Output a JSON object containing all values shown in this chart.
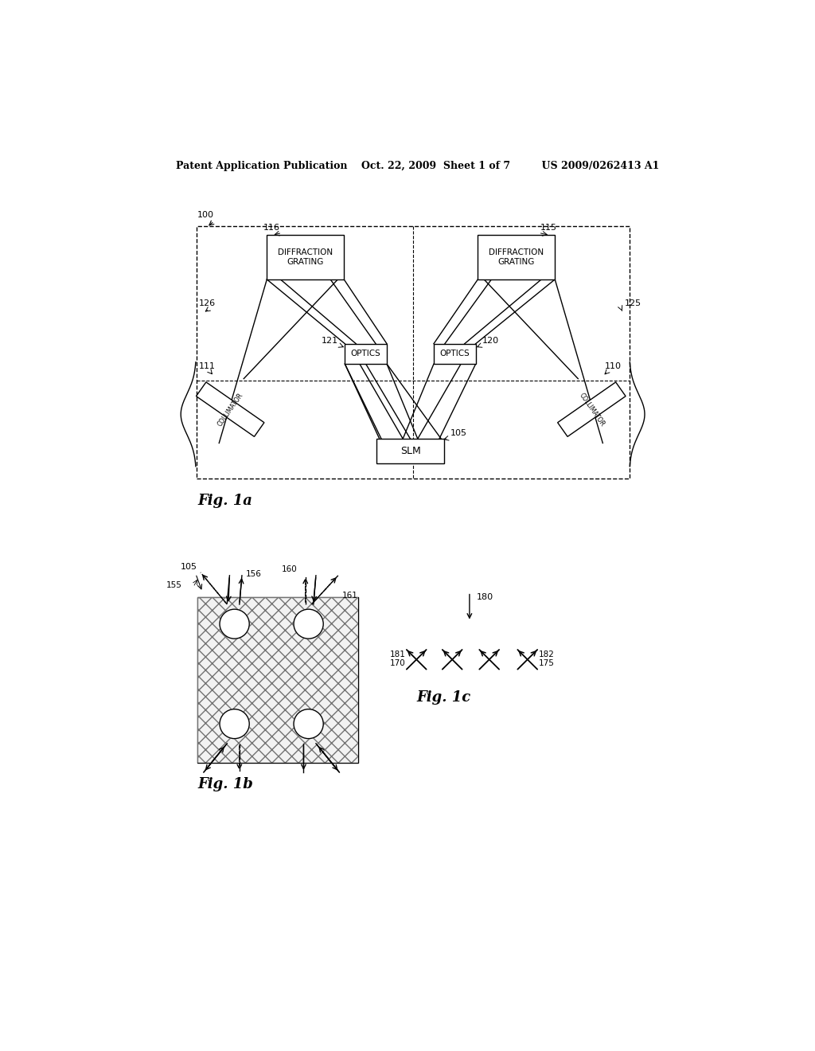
{
  "bg_color": "#ffffff",
  "header_text": "Patent Application Publication    Oct. 22, 2009  Sheet 1 of 7         US 2009/0262413 A1",
  "fig1a_label": "Fig. 1a",
  "fig1b_label": "Fig. 1b",
  "fig1c_label": "Fig. 1c"
}
